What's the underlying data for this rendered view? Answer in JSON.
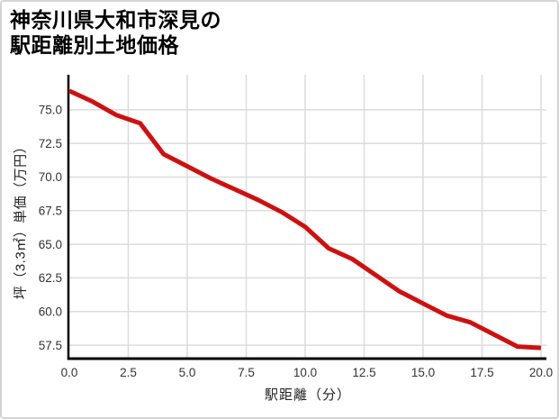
{
  "title": {
    "line1": "神奈川県大和市深見の",
    "line2": "駅距離別土地価格"
  },
  "chart_data": {
    "type": "line",
    "title": "神奈川県大和市深見の駅距離別土地価格",
    "xlabel": "駅距離（分）",
    "ylabel": "坪（3.3㎡）単価（万円）",
    "x": [
      0,
      1,
      2,
      3,
      4,
      5,
      6,
      7,
      8,
      9,
      10,
      11,
      12,
      13,
      14,
      15,
      16,
      17,
      18,
      19,
      20
    ],
    "values": [
      76.4,
      75.6,
      74.6,
      74.0,
      71.7,
      70.8,
      69.9,
      69.1,
      68.3,
      67.4,
      66.3,
      64.7,
      63.9,
      62.7,
      61.5,
      60.6,
      59.7,
      59.2,
      58.3,
      57.4,
      57.3
    ],
    "xlim": [
      0,
      20
    ],
    "ylim": [
      56.5,
      77.6
    ],
    "x_ticks": [
      0,
      2.5,
      5,
      7.5,
      10,
      12.5,
      15,
      17.5,
      20
    ],
    "x_tick_labels": [
      "0.0",
      "2.5",
      "5.0",
      "7.5",
      "10.0",
      "12.5",
      "15.0",
      "17.5",
      "20.0"
    ],
    "y_ticks": [
      57.5,
      60,
      62.5,
      65,
      67.5,
      70,
      72.5,
      75
    ],
    "y_tick_labels": [
      "57.5",
      "60.0",
      "62.5",
      "65.0",
      "67.5",
      "70.0",
      "72.5",
      "75.0"
    ],
    "grid": true,
    "legend": "none",
    "line_color": "#cc1111",
    "grid_color": "#dcdcdc",
    "axis_color": "#000000",
    "tick_label_color": "#333333"
  }
}
